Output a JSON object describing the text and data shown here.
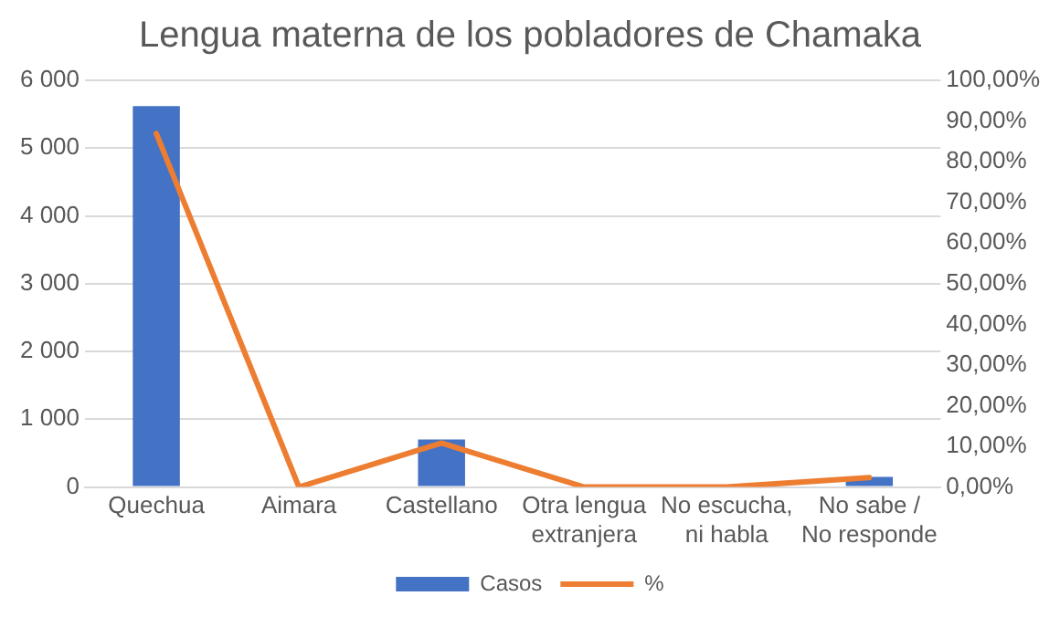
{
  "chart_data": {
    "type": "bar",
    "title": "Lengua materna de los pobladores de Chamaka",
    "categories": [
      "Quechua",
      "Aimara",
      "Castellano",
      "Otra lengua extranjera",
      "No escucha, ni habla",
      "No sabe / No responde"
    ],
    "series": [
      {
        "name": "Casos",
        "color": "#4472c4",
        "values": [
          5620,
          0,
          700,
          0,
          0,
          150
        ]
      },
      {
        "name": "%",
        "type": "line",
        "axis": "y2",
        "color": "#ed7d31",
        "values": [
          86.9,
          0,
          10.8,
          0,
          0,
          2.3
        ]
      }
    ],
    "ylim": [
      0,
      6000
    ],
    "yticks": [
      0,
      {
        "value": 1000,
        "label": "1 000"
      },
      {
        "value": 2000,
        "label": "2 000"
      },
      {
        "value": 3000,
        "label": "3 000"
      },
      {
        "value": 4000,
        "label": "4 000"
      },
      {
        "value": 5000,
        "label": "5 000"
      },
      {
        "value": 6000,
        "label": "6 000"
      }
    ],
    "y2lim": [
      0,
      100
    ],
    "y2ticks": [
      {
        "value": 0,
        "label": "0,00%"
      },
      {
        "value": 10,
        "label": "10,00%"
      },
      {
        "value": 20,
        "label": "20,00%"
      },
      {
        "value": 30,
        "label": "30,00%"
      },
      {
        "value": 40,
        "label": "40,00%"
      },
      {
        "value": 50,
        "label": "50,00%"
      },
      {
        "value": 60,
        "label": "60,00%"
      },
      {
        "value": 70,
        "label": "70,00%"
      },
      {
        "value": 80,
        "label": "80,00%"
      },
      {
        "value": 90,
        "label": "90,00%"
      },
      {
        "value": 100,
        "label": "100,00%"
      }
    ],
    "grid": "y",
    "legend": "bottom",
    "marker": "none"
  }
}
